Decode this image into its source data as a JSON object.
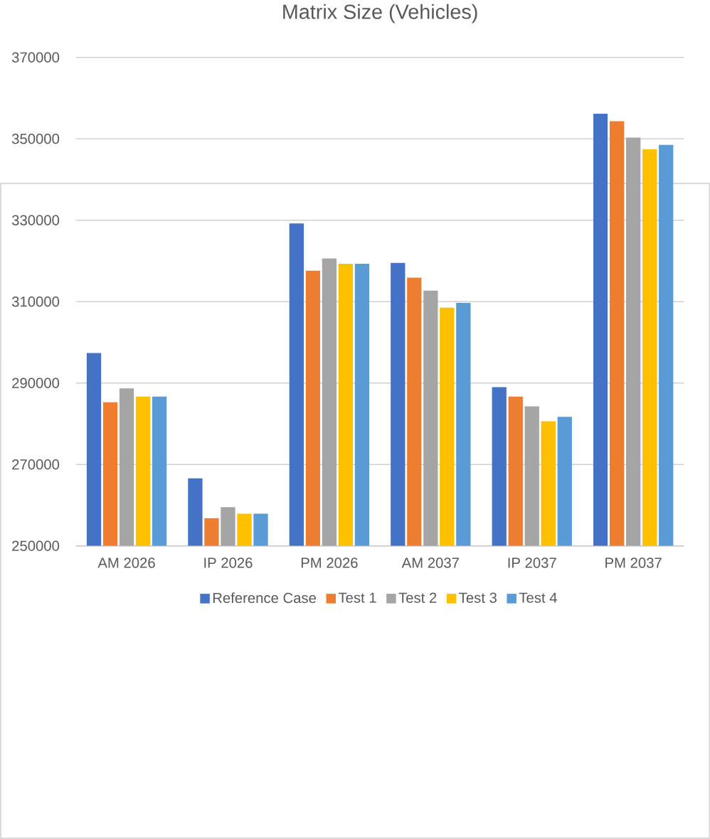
{
  "chart_data": {
    "type": "bar",
    "title": "Matrix Size  (Vehicles)",
    "categories": [
      "AM 2026",
      "IP 2026",
      "PM 2026",
      "AM 2037",
      "IP 2037",
      "PM 2037"
    ],
    "series": [
      {
        "name": "Reference Case",
        "color": "#4472c4",
        "values": [
          297400,
          266600,
          329200,
          319500,
          289000,
          356200
        ]
      },
      {
        "name": "Test 1",
        "color": "#ed7d31",
        "values": [
          285300,
          256800,
          317600,
          315900,
          286700,
          354300
        ]
      },
      {
        "name": "Test 2",
        "color": "#a5a5a5",
        "values": [
          288700,
          259500,
          320600,
          312700,
          284300,
          350300
        ]
      },
      {
        "name": "Test 3",
        "color": "#ffc000",
        "values": [
          286700,
          257900,
          319300,
          308500,
          280600,
          347400
        ]
      },
      {
        "name": "Test 4",
        "color": "#5b9bd5",
        "values": [
          286700,
          257900,
          319300,
          309700,
          281700,
          348500
        ]
      }
    ],
    "ylim": [
      250000,
      370000
    ],
    "yticks": [
      250000,
      270000,
      290000,
      310000,
      330000,
      350000,
      370000
    ],
    "grid": "y",
    "legend": "bottom"
  }
}
